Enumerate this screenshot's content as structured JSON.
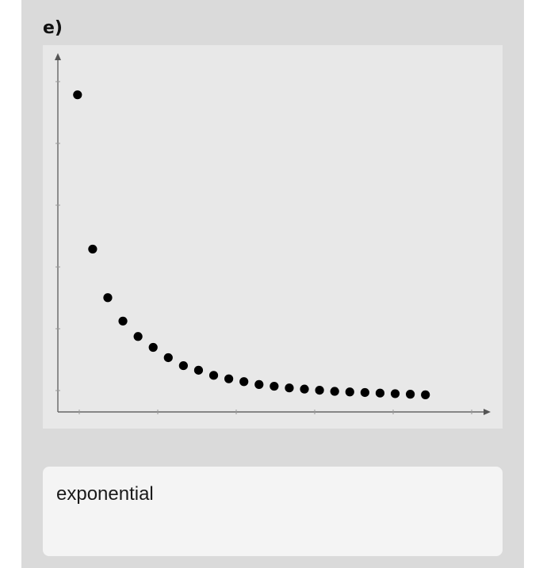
{
  "question": {
    "label": "e)"
  },
  "chart_data": {
    "type": "scatter",
    "title": "",
    "xlabel": "",
    "ylabel": "",
    "x_ticks": 6,
    "y_ticks": 6,
    "grid": false,
    "point_color": "#000000",
    "x": [
      1,
      2,
      3,
      4,
      5,
      6,
      7,
      8,
      9,
      10,
      11,
      12,
      13,
      14,
      15,
      16,
      17,
      18,
      19,
      20,
      21,
      22,
      23,
      24
    ],
    "y": [
      5.25,
      2.55,
      1.7,
      1.29,
      1.02,
      0.83,
      0.65,
      0.51,
      0.43,
      0.34,
      0.28,
      0.23,
      0.18,
      0.15,
      0.12,
      0.1,
      0.08,
      0.06,
      0.05,
      0.04,
      0.03,
      0.02,
      0.01,
      0.0
    ],
    "xlim": [
      -0.3,
      28
    ],
    "ylim": [
      -0.3,
      5.8
    ]
  },
  "answer": {
    "text": "exponential"
  }
}
